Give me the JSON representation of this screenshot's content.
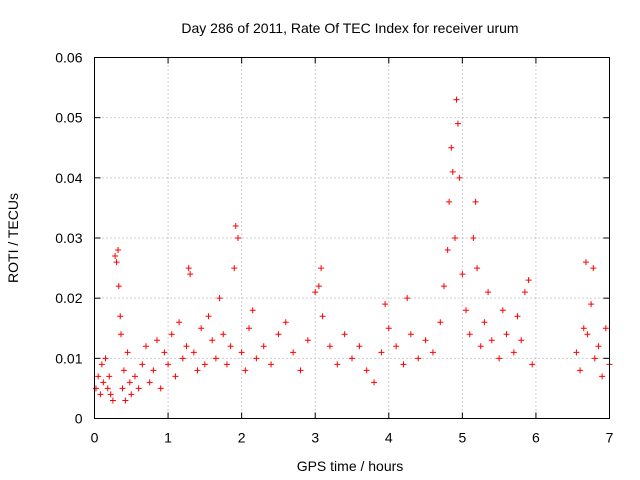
{
  "chart_data": {
    "type": "scatter",
    "title": "Day 286 of 2011, Rate Of TEC Index for receiver urum",
    "xlabel": "GPS time / hours",
    "ylabel": "ROTI / TECUs",
    "xlim": [
      0,
      7
    ],
    "ylim": [
      0,
      0.06
    ],
    "x_ticks": [
      0,
      1,
      2,
      3,
      4,
      5,
      6,
      7
    ],
    "x_tick_labels": [
      "0",
      "1",
      "2",
      "3",
      "4",
      "5",
      "6",
      "7"
    ],
    "y_ticks": [
      0,
      0.01,
      0.02,
      0.03,
      0.04,
      0.05,
      0.06
    ],
    "y_tick_labels": [
      "0",
      "0.01",
      "0.02",
      "0.03",
      "0.04",
      "0.05",
      "0.06"
    ],
    "grid": true,
    "marker": "+",
    "marker_color": "#ff0000",
    "series": [
      {
        "name": "ROTI",
        "points": [
          [
            0.02,
            0.005
          ],
          [
            0.05,
            0.007
          ],
          [
            0.08,
            0.004
          ],
          [
            0.1,
            0.009
          ],
          [
            0.12,
            0.006
          ],
          [
            0.15,
            0.01
          ],
          [
            0.18,
            0.005
          ],
          [
            0.2,
            0.007
          ],
          [
            0.22,
            0.004
          ],
          [
            0.25,
            0.003
          ],
          [
            0.28,
            0.027
          ],
          [
            0.3,
            0.026
          ],
          [
            0.32,
            0.028
          ],
          [
            0.33,
            0.022
          ],
          [
            0.35,
            0.017
          ],
          [
            0.36,
            0.014
          ],
          [
            0.38,
            0.005
          ],
          [
            0.4,
            0.008
          ],
          [
            0.42,
            0.003
          ],
          [
            0.45,
            0.011
          ],
          [
            0.48,
            0.006
          ],
          [
            0.5,
            0.004
          ],
          [
            0.55,
            0.007
          ],
          [
            0.6,
            0.005
          ],
          [
            0.65,
            0.009
          ],
          [
            0.7,
            0.012
          ],
          [
            0.75,
            0.006
          ],
          [
            0.8,
            0.008
          ],
          [
            0.85,
            0.013
          ],
          [
            0.9,
            0.005
          ],
          [
            0.95,
            0.011
          ],
          [
            1.0,
            0.009
          ],
          [
            1.05,
            0.014
          ],
          [
            1.1,
            0.007
          ],
          [
            1.15,
            0.016
          ],
          [
            1.2,
            0.01
          ],
          [
            1.25,
            0.012
          ],
          [
            1.28,
            0.025
          ],
          [
            1.3,
            0.024
          ],
          [
            1.35,
            0.011
          ],
          [
            1.4,
            0.008
          ],
          [
            1.45,
            0.015
          ],
          [
            1.5,
            0.009
          ],
          [
            1.55,
            0.017
          ],
          [
            1.6,
            0.013
          ],
          [
            1.65,
            0.01
          ],
          [
            1.7,
            0.02
          ],
          [
            1.75,
            0.014
          ],
          [
            1.8,
            0.009
          ],
          [
            1.85,
            0.012
          ],
          [
            1.9,
            0.025
          ],
          [
            1.92,
            0.032
          ],
          [
            1.95,
            0.03
          ],
          [
            2.0,
            0.011
          ],
          [
            2.05,
            0.008
          ],
          [
            2.1,
            0.015
          ],
          [
            2.15,
            0.018
          ],
          [
            2.2,
            0.01
          ],
          [
            2.3,
            0.012
          ],
          [
            2.4,
            0.009
          ],
          [
            2.5,
            0.014
          ],
          [
            2.6,
            0.016
          ],
          [
            2.7,
            0.011
          ],
          [
            2.8,
            0.008
          ],
          [
            2.9,
            0.013
          ],
          [
            3.0,
            0.021
          ],
          [
            3.05,
            0.022
          ],
          [
            3.08,
            0.025
          ],
          [
            3.1,
            0.017
          ],
          [
            3.2,
            0.012
          ],
          [
            3.3,
            0.009
          ],
          [
            3.4,
            0.014
          ],
          [
            3.5,
            0.01
          ],
          [
            3.6,
            0.012
          ],
          [
            3.7,
            0.008
          ],
          [
            3.8,
            0.006
          ],
          [
            3.9,
            0.011
          ],
          [
            3.95,
            0.019
          ],
          [
            4.0,
            0.015
          ],
          [
            4.1,
            0.012
          ],
          [
            4.2,
            0.009
          ],
          [
            4.25,
            0.02
          ],
          [
            4.3,
            0.014
          ],
          [
            4.4,
            0.01
          ],
          [
            4.5,
            0.013
          ],
          [
            4.6,
            0.011
          ],
          [
            4.7,
            0.016
          ],
          [
            4.75,
            0.022
          ],
          [
            4.8,
            0.028
          ],
          [
            4.82,
            0.036
          ],
          [
            4.85,
            0.045
          ],
          [
            4.87,
            0.041
          ],
          [
            4.9,
            0.03
          ],
          [
            4.92,
            0.053
          ],
          [
            4.94,
            0.049
          ],
          [
            4.96,
            0.04
          ],
          [
            5.0,
            0.024
          ],
          [
            5.05,
            0.018
          ],
          [
            5.1,
            0.014
          ],
          [
            5.15,
            0.03
          ],
          [
            5.18,
            0.036
          ],
          [
            5.2,
            0.025
          ],
          [
            5.25,
            0.012
          ],
          [
            5.3,
            0.016
          ],
          [
            5.35,
            0.021
          ],
          [
            5.4,
            0.013
          ],
          [
            5.5,
            0.01
          ],
          [
            5.55,
            0.018
          ],
          [
            5.6,
            0.014
          ],
          [
            5.7,
            0.011
          ],
          [
            5.75,
            0.017
          ],
          [
            5.8,
            0.013
          ],
          [
            5.85,
            0.021
          ],
          [
            5.9,
            0.023
          ],
          [
            5.95,
            0.009
          ],
          [
            6.55,
            0.011
          ],
          [
            6.6,
            0.008
          ],
          [
            6.65,
            0.015
          ],
          [
            6.68,
            0.026
          ],
          [
            6.7,
            0.014
          ],
          [
            6.75,
            0.019
          ],
          [
            6.78,
            0.025
          ],
          [
            6.8,
            0.01
          ],
          [
            6.85,
            0.012
          ],
          [
            6.9,
            0.007
          ],
          [
            6.95,
            0.015
          ],
          [
            7.0,
            0.009
          ]
        ]
      }
    ]
  }
}
